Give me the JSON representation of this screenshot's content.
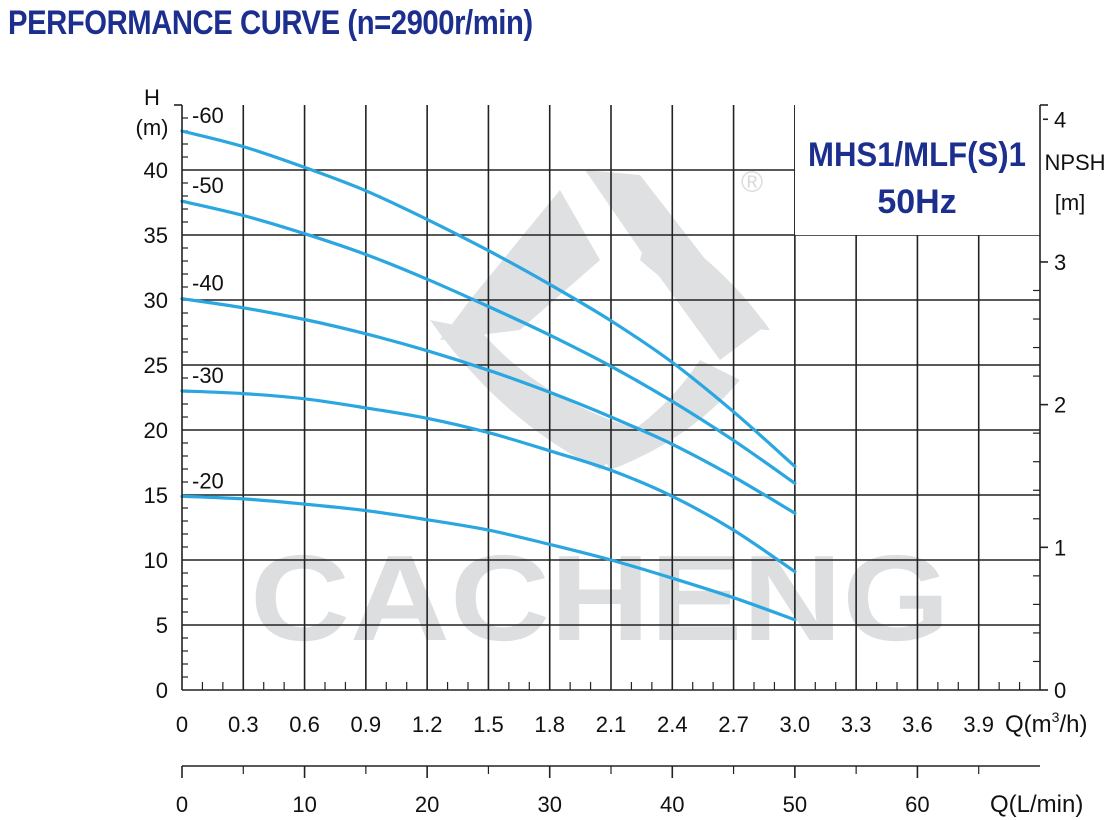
{
  "page": {
    "title": "PERFORMANCE CURVE (n=2900r/min)"
  },
  "model_box": {
    "line1": "MHS1/MLF(S)1",
    "line2": "50Hz",
    "registered_mark": "®"
  },
  "watermark": {
    "text": "CACHENG"
  },
  "colors": {
    "title": "#1c2f8f",
    "curve": "#2aa6e0",
    "grid": "#222222",
    "watermark": "#d9dbdd"
  },
  "chart_data": {
    "type": "line",
    "title": "PERFORMANCE CURVE (n=2900r/min)",
    "grid": true,
    "left_axis": {
      "label_line1": "H",
      "label_line2": "(m)",
      "ylim": [
        0,
        45
      ],
      "ticks": [
        0,
        5,
        10,
        15,
        20,
        25,
        30,
        35,
        40
      ],
      "tick_labels": [
        "0",
        "5",
        "10",
        "15",
        "20",
        "25",
        "30",
        "35",
        "40"
      ]
    },
    "right_axis": {
      "label_line1": "NPSH",
      "label_line2": "[m]",
      "ylim": [
        0,
        4.1
      ],
      "ticks": [
        0,
        1,
        2,
        3,
        4
      ],
      "tick_labels": [
        "0",
        "1",
        "2",
        "3",
        "4"
      ]
    },
    "x_axis_m3h": {
      "label": "Q(m³/h)",
      "label_main": "Q(m",
      "label_sup": "3",
      "label_end": "/h)",
      "xlim": [
        0,
        4.2
      ],
      "ticks": [
        0,
        0.3,
        0.6,
        0.9,
        1.2,
        1.5,
        1.8,
        2.1,
        2.4,
        2.7,
        3.0,
        3.3,
        3.6,
        3.9
      ],
      "tick_labels": [
        "0",
        "0.3",
        "0.6",
        "0.9",
        "1.2",
        "1.5",
        "1.8",
        "2.1",
        "2.4",
        "2.7",
        "3.0",
        "3.3",
        "3.6",
        "3.9"
      ]
    },
    "x_axis_lmin": {
      "label": "Q(L/min)",
      "xlim": [
        0,
        70
      ],
      "ticks": [
        0,
        10,
        20,
        30,
        40,
        50,
        60
      ],
      "tick_labels": [
        "0",
        "10",
        "20",
        "30",
        "40",
        "50",
        "60"
      ]
    },
    "series": [
      {
        "name": "-60",
        "x": [
          0,
          0.3,
          0.6,
          0.9,
          1.2,
          1.5,
          1.8,
          2.1,
          2.4,
          2.7,
          3.0
        ],
        "y": [
          43,
          41.8,
          40.2,
          38.4,
          36.2,
          33.8,
          31.2,
          28.4,
          25.2,
          21.4,
          17.2
        ]
      },
      {
        "name": "-50",
        "x": [
          0,
          0.3,
          0.6,
          0.9,
          1.2,
          1.5,
          1.8,
          2.1,
          2.4,
          2.7,
          3.0
        ],
        "y": [
          37.6,
          36.5,
          35.1,
          33.5,
          31.6,
          29.5,
          27.3,
          24.9,
          22.2,
          19.2,
          15.9
        ]
      },
      {
        "name": "-40",
        "x": [
          0,
          0.3,
          0.6,
          0.9,
          1.2,
          1.5,
          1.8,
          2.1,
          2.4,
          2.7,
          3.0
        ],
        "y": [
          30.1,
          29.4,
          28.5,
          27.4,
          26.1,
          24.6,
          22.9,
          21,
          18.9,
          16.4,
          13.6
        ]
      },
      {
        "name": "-30",
        "x": [
          0,
          0.3,
          0.6,
          0.9,
          1.2,
          1.5,
          1.8,
          2.1,
          2.4,
          2.7,
          3.0
        ],
        "y": [
          23,
          22.8,
          22.4,
          21.7,
          20.9,
          19.8,
          18.4,
          16.9,
          14.9,
          12.3,
          9.1
        ]
      },
      {
        "name": "-20",
        "x": [
          0,
          0.3,
          0.6,
          0.9,
          1.2,
          1.5,
          1.8,
          2.1,
          2.4,
          2.7,
          3.0
        ],
        "y": [
          14.9,
          14.7,
          14.3,
          13.8,
          13.1,
          12.3,
          11.2,
          10,
          8.6,
          7.1,
          5.4
        ]
      }
    ]
  }
}
